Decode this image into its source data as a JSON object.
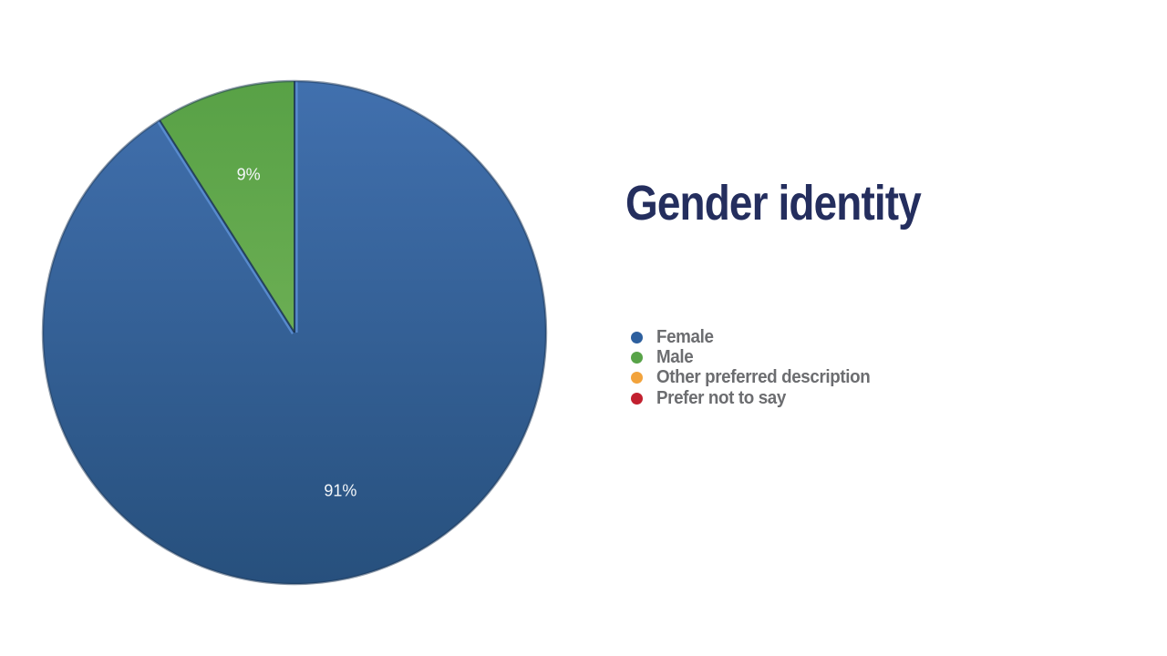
{
  "chart_data": {
    "type": "pie",
    "title": "Gender identity",
    "categories": [
      "Female",
      "Male",
      "Other preferred description",
      "Prefer not to say"
    ],
    "values": [
      91,
      9,
      0,
      0
    ],
    "data_labels": [
      "91%",
      "9%",
      "",
      ""
    ],
    "unit": "%",
    "start_angle_deg": 0,
    "direction": "clockwise",
    "legend_position": "right",
    "colors": [
      "#2d5f9e",
      "#58a348",
      "#f2a33c",
      "#c2202f"
    ],
    "pie_gradients": [
      {
        "top": "#4170ae",
        "bottom": "#27507d"
      },
      {
        "top": "#58a146",
        "bottom": "#6bae53"
      },
      {
        "top": "#f2a33c",
        "bottom": "#e0902a"
      },
      {
        "top": "#c2202f",
        "bottom": "#a81b28"
      }
    ],
    "edge_dark": "#1c3655",
    "edge_light": "#5b8ed2",
    "title_color": "#242e5e",
    "legend_text_color": "#6c6d70",
    "label_text_color": "#f4f7fa",
    "background_color": "#ffffff"
  }
}
